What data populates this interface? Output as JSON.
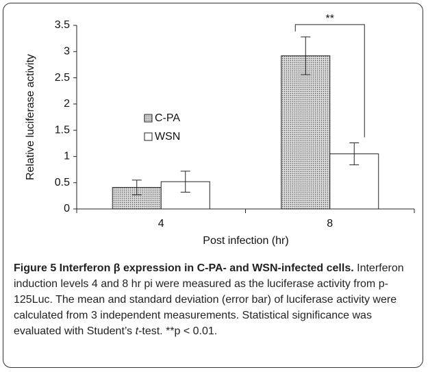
{
  "chart_data": {
    "type": "bar",
    "categories": [
      "4",
      "8"
    ],
    "series": [
      {
        "name": "C-PA",
        "color": "#d9d9d9",
        "hatch": "dots",
        "values": [
          0.41,
          2.92
        ],
        "errors": [
          0.14,
          0.36
        ]
      },
      {
        "name": "WSN",
        "color": "#ffffff",
        "hatch": null,
        "values": [
          0.52,
          1.05
        ],
        "errors": [
          0.2,
          0.21
        ]
      }
    ],
    "ylim": [
      0,
      3.5
    ],
    "yticks": [
      0,
      0.5,
      1,
      1.5,
      2,
      2.5,
      3,
      3.5
    ],
    "ylabel": "Relative luciferase activity",
    "xlabel": "Post infection (hr)",
    "annotation": "**"
  },
  "caption": {
    "title": "Figure 5 Interferon β expression in C-PA- and WSN-infected cells.",
    "text": [
      "Interferon induction levels 4 and 8 hr pi were measured as the luciferase activity from p-125Luc. The mean and standard deviation (error bar) of luciferase activity were calculated from 3 independent measurements. Statistical significance was evaluated with Student’s ",
      "t",
      "-test. **p < 0.01."
    ]
  }
}
